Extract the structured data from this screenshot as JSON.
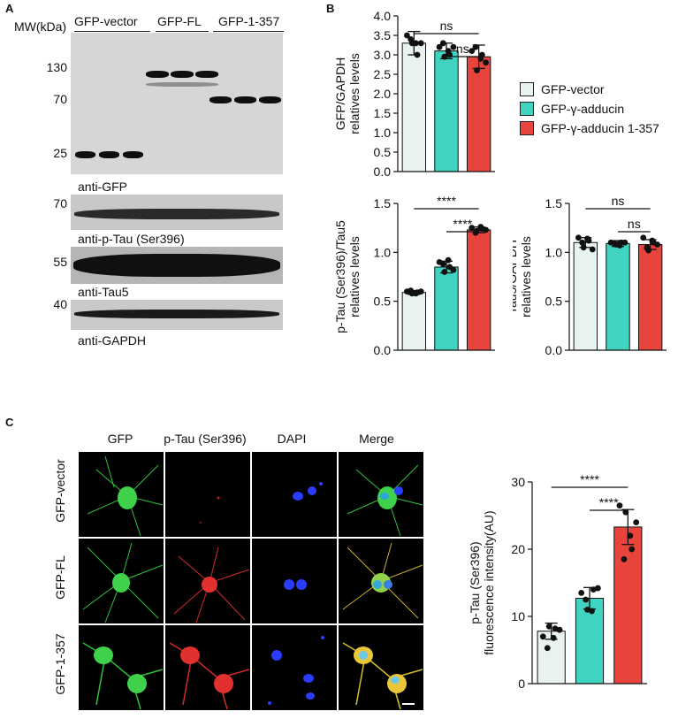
{
  "panels": {
    "a": "A",
    "b": "B",
    "c": "C"
  },
  "western": {
    "mw_label": "MW(kDa)",
    "groups": [
      "GFP-vector",
      "GFP-FL",
      "GFP-1-357"
    ],
    "markers": [
      "130",
      "70",
      "25",
      "70",
      "55",
      "40"
    ],
    "antibodies": [
      "anti-GFP",
      "anti-p-Tau (Ser396)",
      "anti-Tau5",
      "anti-GAPDH"
    ]
  },
  "legend": {
    "items": [
      {
        "label": "GFP-vector",
        "color": "#e8f3ef"
      },
      {
        "label": "GFP-γ-adducin",
        "color": "#3fd3c0"
      },
      {
        "label": "GFP-γ-adducin 1-357",
        "color": "#e9443b"
      }
    ]
  },
  "chart_data": [
    {
      "type": "bar",
      "categories": [
        "GFP-vector",
        "GFP-γ-adducin",
        "GFP-γ-adducin 1-357"
      ],
      "values": [
        3.3,
        3.1,
        2.95
      ],
      "errors": [
        0.3,
        0.2,
        0.3
      ],
      "points": [
        [
          3.5,
          3.3,
          3.0,
          3.4,
          3.3,
          3.3
        ],
        [
          3.2,
          2.95,
          3.0,
          3.3,
          3.1,
          3.2
        ],
        [
          3.1,
          2.6,
          3.0,
          3.2,
          2.9,
          2.8
        ]
      ],
      "ylabel": "GFP/GAPDH relatives levels",
      "ylim": [
        0,
        4.0
      ],
      "yticks": [
        "0.0",
        "0.5",
        "1.0",
        "1.5",
        "2.0",
        "2.5",
        "3.0",
        "3.5",
        "4.0"
      ],
      "significance": [
        "ns",
        "ns"
      ]
    },
    {
      "type": "bar",
      "categories": [
        "GFP-vector",
        "GFP-γ-adducin",
        "GFP-γ-adducin 1-357"
      ],
      "values": [
        0.59,
        0.85,
        1.23
      ],
      "errors": [
        0.02,
        0.06,
        0.03
      ],
      "points": [
        [
          0.6,
          0.58,
          0.59,
          0.61,
          0.58,
          0.6
        ],
        [
          0.9,
          0.8,
          0.85,
          0.88,
          0.92,
          0.82
        ],
        [
          1.25,
          1.22,
          1.24,
          1.2,
          1.26,
          1.23
        ]
      ],
      "ylabel": "p-Tau (Ser396)/Tau5 relatives levels",
      "ylim": [
        0,
        1.5
      ],
      "yticks": [
        "0.0",
        "0.5",
        "1.0",
        "1.5"
      ],
      "significance": [
        "****",
        "****"
      ]
    },
    {
      "type": "bar",
      "categories": [
        "GFP-vector",
        "GFP-γ-adducin",
        "GFP-γ-adducin 1-357"
      ],
      "values": [
        1.1,
        1.09,
        1.08
      ],
      "errors": [
        0.05,
        0.03,
        0.05
      ],
      "points": [
        [
          1.15,
          1.05,
          1.12,
          1.1,
          1.14,
          1.03
        ],
        [
          1.1,
          1.08,
          1.1,
          1.09,
          1.07,
          1.1
        ],
        [
          1.15,
          1.02,
          1.1,
          1.05,
          1.12,
          1.08
        ]
      ],
      "ylabel": "Tau5/GAPDH relatives levels",
      "ylim": [
        0,
        1.5
      ],
      "yticks": [
        "0.0",
        "0.5",
        "1.0",
        "1.5"
      ],
      "significance": [
        "ns",
        "ns"
      ]
    },
    {
      "type": "bar",
      "categories": [
        "GFP-vector",
        "GFP-γ-adducin",
        "GFP-γ-adducin 1-357"
      ],
      "values": [
        7.8,
        12.7,
        23.3
      ],
      "errors": [
        1.2,
        1.6,
        2.6
      ],
      "points": [
        [
          7.0,
          8.5,
          8.2,
          5.3,
          6.8,
          8.0
        ],
        [
          13.5,
          11.0,
          14.0,
          12.5,
          10.8,
          14.2
        ],
        [
          26.5,
          25.5,
          20.0,
          18.5,
          22.0,
          24.0
        ]
      ],
      "ylabel": "p-Tau (Ser396) fluorescence intensity(AU)",
      "ylim": [
        0,
        30
      ],
      "yticks": [
        "0",
        "10",
        "20",
        "30"
      ],
      "significance": [
        "****",
        "****"
      ]
    }
  ],
  "micrographs": {
    "columns": [
      "GFP",
      "p-Tau (Ser396)",
      "DAPI",
      "Merge"
    ],
    "rows": [
      "GFP-vector",
      "GFP-FL",
      "GFP-1-357"
    ]
  }
}
